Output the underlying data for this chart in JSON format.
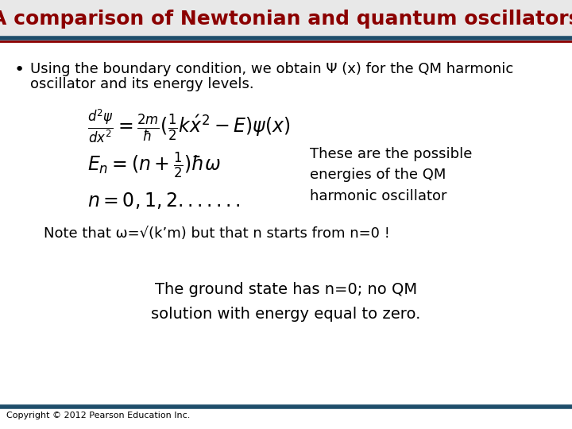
{
  "title": "A comparison of Newtonian and quantum oscillators",
  "title_color": "#8B0000",
  "title_fontsize": 18,
  "bg_color": "#FFFFFF",
  "header_line_top_color": "#1F4E6B",
  "header_line_bot_color": "#8B0000",
  "bullet_text_line1": "Using the boundary condition, we obtain Ψ (x) for the QM harmonic",
  "bullet_text_line2": "oscillator and its energy levels.",
  "annotation": "These are the possible\nenergies of the QM\nharmonic oscillator",
  "note_text": "Note that ω=√(kʼm) but that n starts from n=0 !",
  "ground_state_text": "The ground state has n=0; no QM\nsolution with energy equal to zero.",
  "copyright": "Copyright © 2012 Pearson Education Inc.",
  "footer_line_color": "#1F4E6B",
  "text_color": "#000000",
  "bullet_fontsize": 13,
  "eq_fontsize": 14,
  "note_fontsize": 13,
  "ground_fontsize": 14,
  "copyright_fontsize": 8,
  "title_bar_color": "#E8E8E8"
}
